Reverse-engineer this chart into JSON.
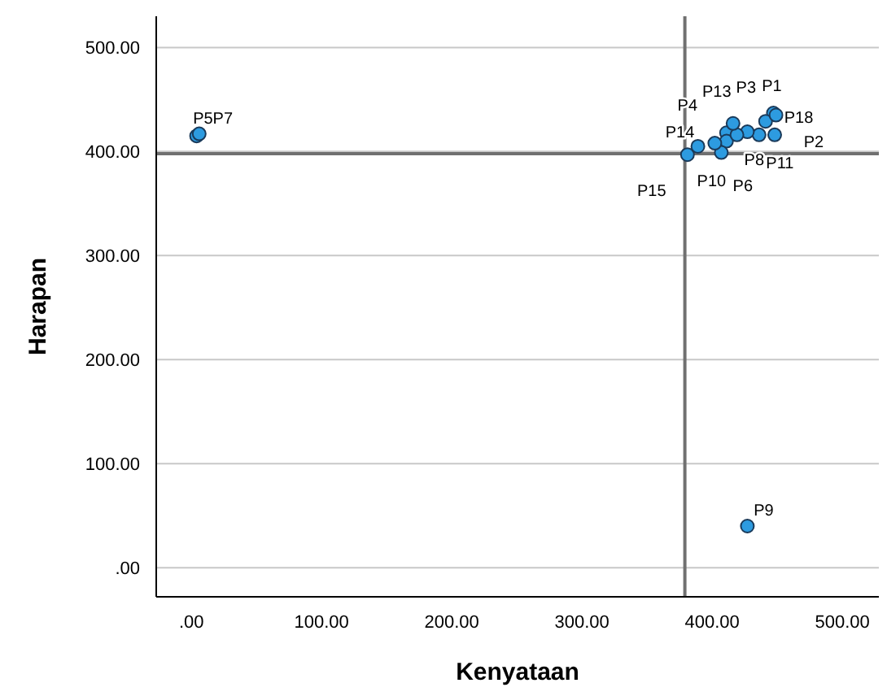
{
  "chart_data": {
    "type": "scatter",
    "xlabel": "Kenyataan",
    "ylabel": "Harapan",
    "x": [
      447,
      448,
      441,
      411,
      4,
      411,
      6,
      436,
      427,
      407,
      427,
      419,
      416,
      389,
      381,
      402,
      449
    ],
    "values": [
      437,
      416,
      429,
      418,
      415,
      410,
      417,
      416,
      40,
      399,
      419,
      416,
      427,
      405,
      397,
      408,
      435
    ],
    "color": "#2d9be0",
    "marker": "circle",
    "grid": "y",
    "xlim": [
      -27,
      528
    ],
    "ylim": [
      -28,
      530
    ],
    "xticks": [
      {
        "value": 0,
        "label": ".00"
      },
      {
        "value": 100,
        "label": "100.00"
      },
      {
        "value": 200,
        "label": "200.00"
      },
      {
        "value": 300,
        "label": "300.00"
      },
      {
        "value": 400,
        "label": "400.00"
      },
      {
        "value": 500,
        "label": "500.00"
      }
    ],
    "yticks": [
      {
        "value": 0,
        "label": ".00"
      },
      {
        "value": 100,
        "label": "100.00"
      },
      {
        "value": 200,
        "label": "200.00"
      },
      {
        "value": 300,
        "label": "300.00"
      },
      {
        "value": 400,
        "label": "400.00"
      },
      {
        "value": 500,
        "label": "500.00"
      }
    ],
    "ref_lines": [
      {
        "axis": "x",
        "value": 379,
        "color": "#707070"
      },
      {
        "axis": "y",
        "value": 398,
        "color": "#707070"
      }
    ],
    "annotations": [
      {
        "text": "P1",
        "x": 447,
        "y": 437
      },
      {
        "text": "P2",
        "x": 448,
        "y": 416
      },
      {
        "text": "P3",
        "x": 441,
        "y": 429
      },
      {
        "text": "P4",
        "x": 411,
        "y": 418
      },
      {
        "text": "P5P7",
        "x": 4,
        "y": 415
      },
      {
        "text": "P6",
        "x": 411,
        "y": 410
      },
      {
        "text": "P8",
        "x": 436,
        "y": 416
      },
      {
        "text": "P9",
        "x": 427,
        "y": 40
      },
      {
        "text": "P10",
        "x": 407,
        "y": 399
      },
      {
        "text": "P11",
        "x": 427,
        "y": 419
      },
      {
        "text": "P13",
        "x": 416,
        "y": 427
      },
      {
        "text": "P14",
        "x": 389,
        "y": 405
      },
      {
        "text": "P15",
        "x": 381,
        "y": 397
      },
      {
        "text": "P18",
        "x": 449,
        "y": 435
      }
    ]
  }
}
